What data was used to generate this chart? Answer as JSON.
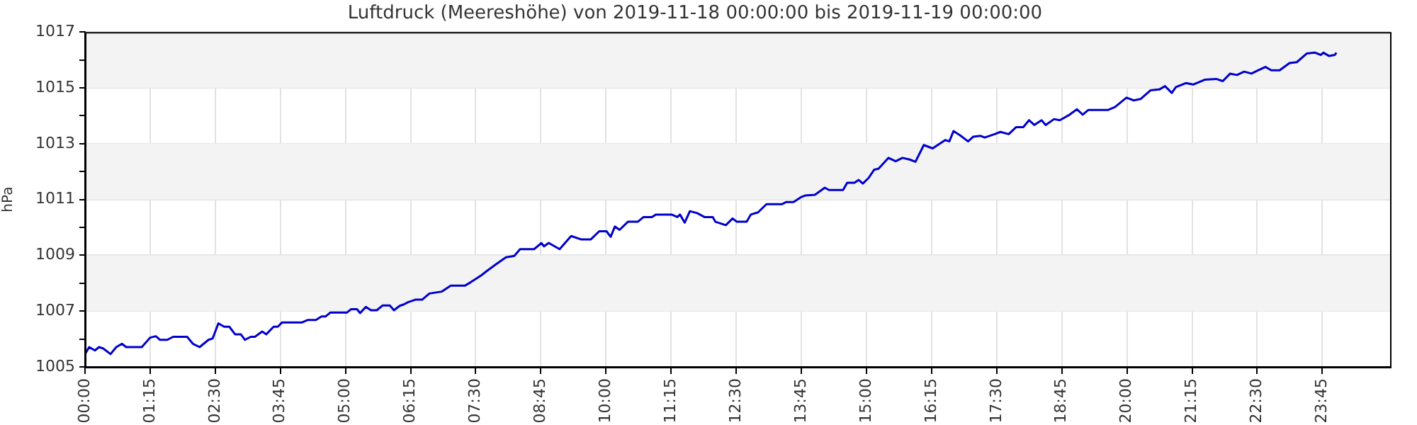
{
  "chart_data": {
    "type": "line",
    "title": "Luftdruck (Meereshöhe) von 2019-11-18 00:00:00 bis 2019-11-19 00:00:00",
    "ylabel": "hPa",
    "x": [
      0,
      0.08,
      0.19,
      0.27,
      0.35,
      0.49,
      0.6,
      0.71,
      0.79,
      1.09,
      1.25,
      1.36,
      1.44,
      1.58,
      1.69,
      1.96,
      2.07,
      2.2,
      2.37,
      2.45,
      2.56,
      2.67,
      2.77,
      2.88,
      2.99,
      3.07,
      3.18,
      3.26,
      3.4,
      3.48,
      3.62,
      3.7,
      3.78,
      4.16,
      4.27,
      4.43,
      4.54,
      4.62,
      4.71,
      5.03,
      5.11,
      5.22,
      5.28,
      5.39,
      5.49,
      5.6,
      5.71,
      5.85,
      5.93,
      6.04,
      6.12,
      6.2,
      6.34,
      6.47,
      6.61,
      6.85,
      7.02,
      7.29,
      7.4,
      7.48,
      7.62,
      7.7,
      7.89,
      8.08,
      8.24,
      8.35,
      8.62,
      8.76,
      8.81,
      8.9,
      9.11,
      9.33,
      9.52,
      9.71,
      9.87,
      10.01,
      10.09,
      10.17,
      10.26,
      10.42,
      10.61,
      10.72,
      10.88,
      10.96,
      11.26,
      11.37,
      11.42,
      11.51,
      11.61,
      11.75,
      11.89,
      12.05,
      12.1,
      12.3,
      12.43,
      12.51,
      12.7,
      12.78,
      12.92,
      13.08,
      13.38,
      13.46,
      13.6,
      13.74,
      13.82,
      14.01,
      14.2,
      14.28,
      14.55,
      14.63,
      14.77,
      14.85,
      14.93,
      15.04,
      15.15,
      15.23,
      15.42,
      15.56,
      15.69,
      15.83,
      15.94,
      16.1,
      16.27,
      16.51,
      16.59,
      16.67,
      16.81,
      16.95,
      17.05,
      17.19,
      17.27,
      17.46,
      17.57,
      17.73,
      17.87,
      18.01,
      18.12,
      18.22,
      18.36,
      18.44,
      18.6,
      18.71,
      18.9,
      19.04,
      19.15,
      19.26,
      19.64,
      19.77,
      19.99,
      20.13,
      20.26,
      20.45,
      20.62,
      20.73,
      20.86,
      20.94,
      21.13,
      21.27,
      21.49,
      21.71,
      21.84,
      21.98,
      22.11,
      22.25,
      22.39,
      22.52,
      22.66,
      22.77,
      22.93,
      23.12,
      23.26,
      23.45,
      23.61,
      23.72,
      23.77,
      23.88,
      23.99,
      24.02
    ],
    "series": [
      {
        "color": "#0000cc",
        "values": [
          1005.46,
          1005.71,
          1005.59,
          1005.71,
          1005.66,
          1005.46,
          1005.71,
          1005.83,
          1005.71,
          1005.71,
          1006.05,
          1006.1,
          1005.97,
          1005.97,
          1006.08,
          1006.08,
          1005.83,
          1005.71,
          1005.97,
          1006.02,
          1006.56,
          1006.44,
          1006.44,
          1006.17,
          1006.17,
          1005.97,
          1006.08,
          1006.08,
          1006.27,
          1006.17,
          1006.44,
          1006.44,
          1006.59,
          1006.59,
          1006.68,
          1006.68,
          1006.81,
          1006.81,
          1006.95,
          1006.95,
          1007.07,
          1007.07,
          1006.93,
          1007.15,
          1007.03,
          1007.03,
          1007.2,
          1007.2,
          1007.03,
          1007.19,
          1007.24,
          1007.32,
          1007.41,
          1007.41,
          1007.63,
          1007.7,
          1007.91,
          1007.91,
          1008.03,
          1008.13,
          1008.3,
          1008.42,
          1008.68,
          1008.93,
          1008.98,
          1009.22,
          1009.22,
          1009.44,
          1009.32,
          1009.44,
          1009.22,
          1009.69,
          1009.57,
          1009.57,
          1009.86,
          1009.86,
          1009.66,
          1010.03,
          1009.91,
          1010.2,
          1010.2,
          1010.37,
          1010.37,
          1010.46,
          1010.46,
          1010.37,
          1010.46,
          1010.17,
          1010.58,
          1010.51,
          1010.37,
          1010.37,
          1010.2,
          1010.08,
          1010.32,
          1010.2,
          1010.2,
          1010.46,
          1010.54,
          1010.83,
          1010.83,
          1010.91,
          1010.91,
          1011.08,
          1011.14,
          1011.17,
          1011.42,
          1011.34,
          1011.34,
          1011.6,
          1011.6,
          1011.7,
          1011.57,
          1011.77,
          1012.07,
          1012.1,
          1012.49,
          1012.37,
          1012.49,
          1012.43,
          1012.35,
          1012.95,
          1012.83,
          1013.13,
          1013.08,
          1013.45,
          1013.28,
          1013.08,
          1013.25,
          1013.28,
          1013.22,
          1013.34,
          1013.42,
          1013.34,
          1013.59,
          1013.59,
          1013.84,
          1013.67,
          1013.84,
          1013.67,
          1013.88,
          1013.84,
          1014.04,
          1014.23,
          1014.04,
          1014.21,
          1014.21,
          1014.31,
          1014.65,
          1014.55,
          1014.6,
          1014.91,
          1014.94,
          1015.06,
          1014.82,
          1015.03,
          1015.17,
          1015.12,
          1015.29,
          1015.32,
          1015.24,
          1015.51,
          1015.46,
          1015.58,
          1015.51,
          1015.63,
          1015.75,
          1015.63,
          1015.63,
          1015.89,
          1015.92,
          1016.23,
          1016.26,
          1016.18,
          1016.26,
          1016.14,
          1016.18,
          1016.26
        ]
      }
    ],
    "xlim": [
      0,
      25.05
    ],
    "xticks": [
      {
        "value": 0,
        "label": "00:00"
      },
      {
        "value": 1.25,
        "label": "01:15"
      },
      {
        "value": 2.5,
        "label": "02:30"
      },
      {
        "value": 3.75,
        "label": "03:45"
      },
      {
        "value": 5,
        "label": "05:00"
      },
      {
        "value": 6.25,
        "label": "06:15"
      },
      {
        "value": 7.5,
        "label": "07:30"
      },
      {
        "value": 8.75,
        "label": "08:45"
      },
      {
        "value": 10,
        "label": "10:00"
      },
      {
        "value": 11.25,
        "label": "11:15"
      },
      {
        "value": 12.5,
        "label": "12:30"
      },
      {
        "value": 13.75,
        "label": "13:45"
      },
      {
        "value": 15,
        "label": "15:00"
      },
      {
        "value": 16.25,
        "label": "16:15"
      },
      {
        "value": 17.5,
        "label": "17:30"
      },
      {
        "value": 18.75,
        "label": "18:45"
      },
      {
        "value": 20,
        "label": "20:00"
      },
      {
        "value": 21.25,
        "label": "21:15"
      },
      {
        "value": 22.5,
        "label": "22:30"
      },
      {
        "value": 23.75,
        "label": "23:45"
      }
    ],
    "ylim": [
      1005,
      1017
    ],
    "yticks": [
      1005,
      {
        "value": 1006,
        "label": null
      },
      1007,
      {
        "value": 1008,
        "label": null
      },
      1009,
      {
        "value": 1010,
        "label": null
      },
      1011,
      {
        "value": 1012,
        "label": null
      },
      1013,
      {
        "value": 1014,
        "label": null
      },
      1015,
      {
        "value": 1016,
        "label": null
      },
      1017
    ],
    "grid": true,
    "legend": false,
    "marker": "none",
    "line_style": "solid"
  }
}
